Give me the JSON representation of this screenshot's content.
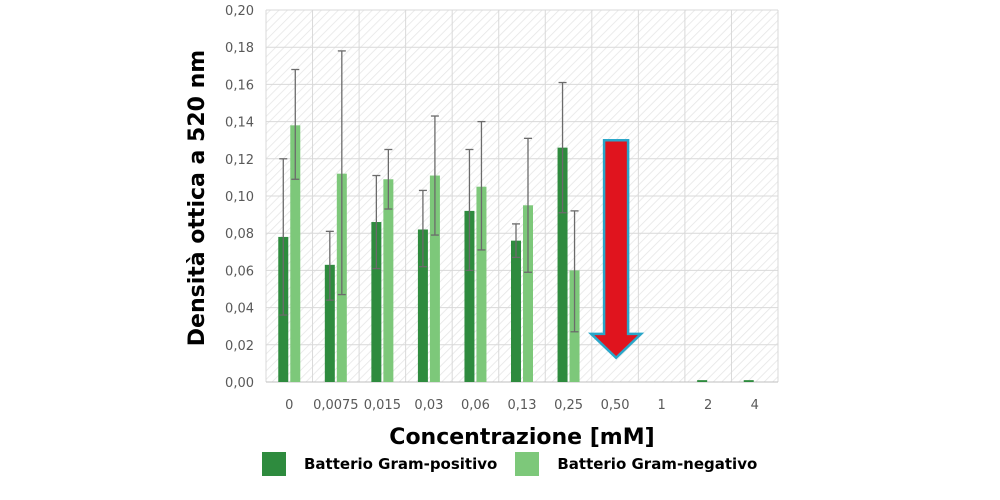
{
  "chart_data": {
    "type": "bar",
    "title": "",
    "xlabel": "Concentrazione [mM]",
    "ylabel": "Densità ottica a 520 nm",
    "ylim": [
      0,
      0.2
    ],
    "yticks": [
      "0,00",
      "0,02",
      "0,04",
      "0,06",
      "0,08",
      "0,10",
      "0,12",
      "0,14",
      "0,16",
      "0,18",
      "0,20"
    ],
    "categories": [
      "0",
      "0,0075",
      "0,015",
      "0,03",
      "0,06",
      "0,13",
      "0,25",
      "0,50",
      "1",
      "2",
      "4"
    ],
    "grid": true,
    "legend_position": "bottom",
    "series": [
      {
        "name": "Batterio Gram-positivo",
        "color": "#2e8b3e",
        "values": [
          0.078,
          0.063,
          0.086,
          0.082,
          0.092,
          0.076,
          0.126,
          0,
          0,
          0.001,
          0.001
        ],
        "err_low": [
          0.036,
          0.044,
          0.061,
          0.062,
          0.06,
          0.067,
          0.091,
          0,
          0,
          0.001,
          0.001
        ],
        "err_high": [
          0.12,
          0.081,
          0.111,
          0.103,
          0.125,
          0.085,
          0.161,
          0,
          0,
          0.001,
          0.001
        ]
      },
      {
        "name": "Batterio Gram-negativo",
        "color": "#7dc87a",
        "values": [
          0.138,
          0.112,
          0.109,
          0.111,
          0.105,
          0.095,
          0.06,
          0,
          0,
          0,
          0
        ],
        "err_low": [
          0.109,
          0.047,
          0.093,
          0.079,
          0.071,
          0.059,
          0.027,
          0,
          0,
          0,
          0
        ],
        "err_high": [
          0.168,
          0.178,
          0.125,
          0.143,
          0.14,
          0.131,
          0.092,
          0,
          0,
          0,
          0
        ]
      }
    ],
    "annotation": {
      "type": "arrow-down",
      "category": "0,50",
      "color": "#e0141e",
      "outline": "#2aa6c9",
      "from": 0.13,
      "to": 0.013
    }
  }
}
